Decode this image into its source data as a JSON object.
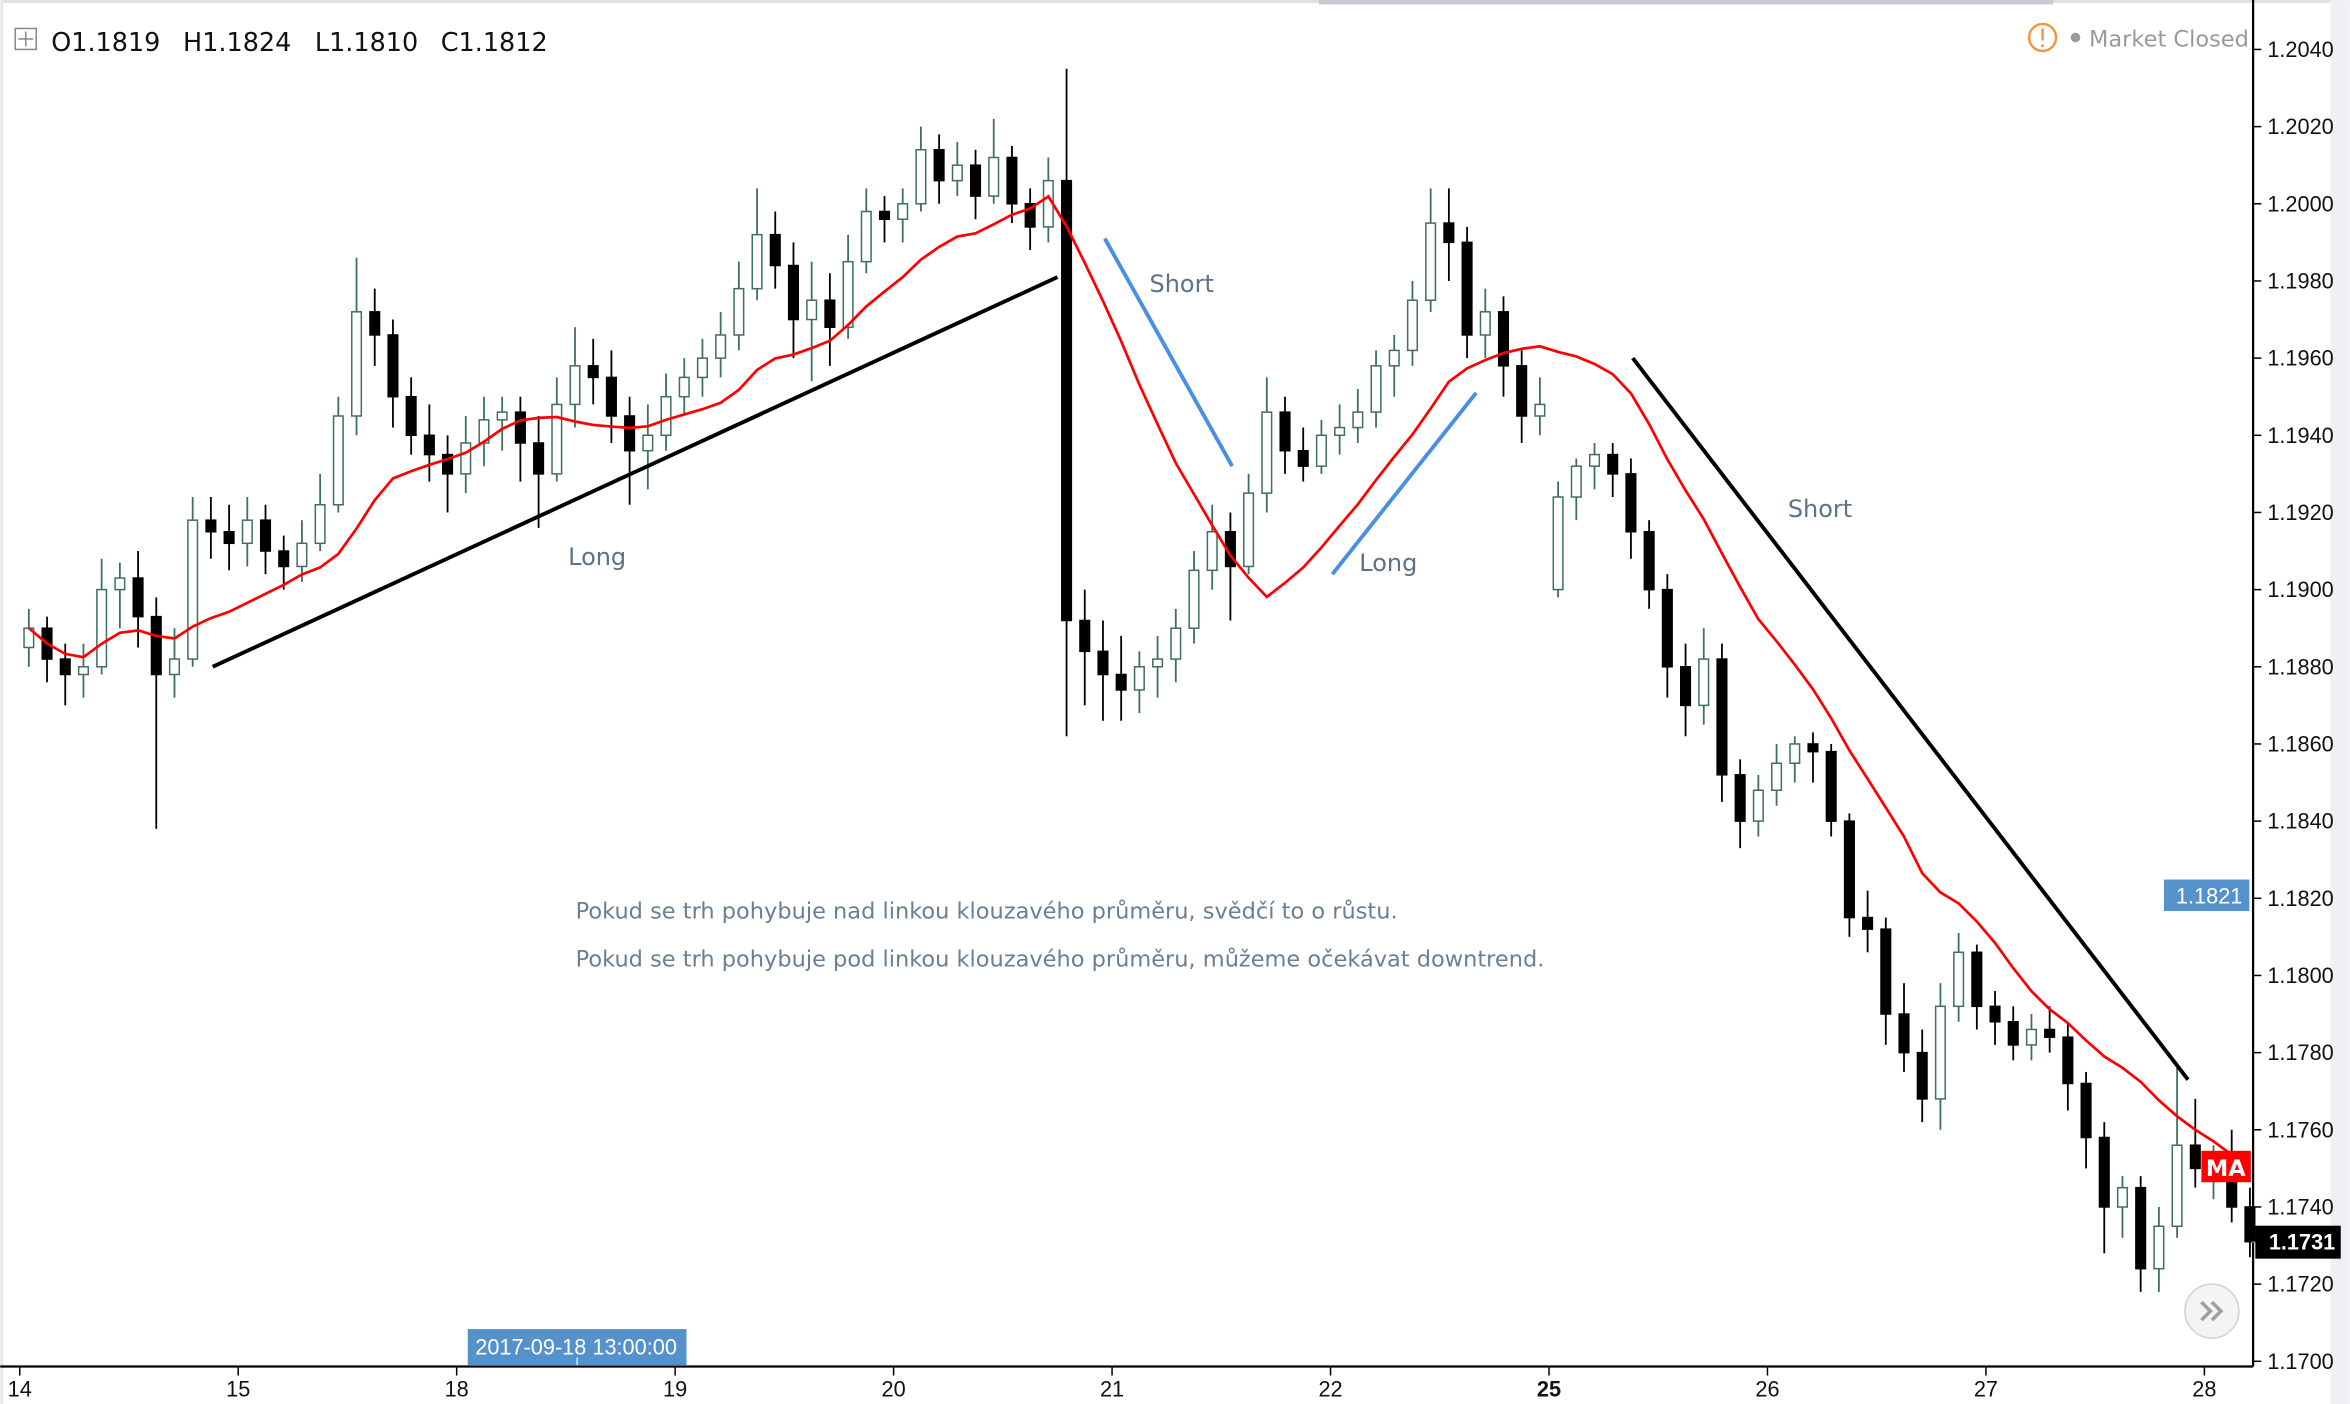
{
  "ohlc_header": {
    "open": "O1.1819",
    "high": "H1.1824",
    "low": "L1.1810",
    "close": "C1.1812"
  },
  "status": {
    "text": "Market Closed",
    "warning_color": "#f7923a"
  },
  "annotations": {
    "line1": "Pokud se trh pohybuje nad linkou klouzavého průměru, svědčí to o růstu.",
    "line2": "Pokud se trh pohybuje pod linkou klouzavého průměru, můžeme očekávat downtrend.",
    "labels": [
      "Long",
      "Short",
      "Long",
      "Short"
    ]
  },
  "chart_data": {
    "type": "candlestick",
    "title": "",
    "x_ticks": [
      "14",
      "15",
      "18",
      "19",
      "20",
      "21",
      "22",
      "25",
      "26",
      "27",
      "28"
    ],
    "y_ticks": [
      "1.2040",
      "1.2020",
      "1.2000",
      "1.1980",
      "1.1960",
      "1.1940",
      "1.1920",
      "1.1900",
      "1.1880",
      "1.1860",
      "1.1840",
      "1.1820",
      "1.1800",
      "1.1780",
      "1.1760",
      "1.1740",
      "1.1720",
      "1.1700"
    ],
    "ylim": [
      1.17,
      1.2048
    ],
    "grid": false,
    "colors": {
      "up": "#3f6f5f",
      "down": "#000000",
      "ma": "#ff0000",
      "trend_long": "#000000",
      "trend_blue": "#4a90e2"
    },
    "days": [
      {
        "day": "14",
        "candles": [
          [
            1.1885,
            1.1895,
            1.188,
            1.189
          ],
          [
            1.189,
            1.1893,
            1.1876,
            1.1882
          ],
          [
            1.1882,
            1.1886,
            1.187,
            1.1878
          ],
          [
            1.1878,
            1.1886,
            1.1872,
            1.188
          ],
          [
            1.188,
            1.1908,
            1.1878,
            1.19
          ],
          [
            1.19,
            1.1907,
            1.189,
            1.1903
          ],
          [
            1.1903,
            1.191,
            1.1885,
            1.1893
          ],
          [
            1.1893,
            1.1898,
            1.1838,
            1.1878
          ],
          [
            1.1878,
            1.189,
            1.1872,
            1.1882
          ],
          [
            1.1882,
            1.1924,
            1.188,
            1.1918
          ],
          [
            1.1918,
            1.1924,
            1.1908,
            1.1915
          ],
          [
            1.1915,
            1.1922,
            1.1905,
            1.1912
          ]
        ]
      },
      {
        "day": "15",
        "candles": [
          [
            1.1912,
            1.1924,
            1.1906,
            1.1918
          ],
          [
            1.1918,
            1.1922,
            1.1904,
            1.191
          ],
          [
            1.191,
            1.1914,
            1.19,
            1.1906
          ],
          [
            1.1906,
            1.1918,
            1.1902,
            1.1912
          ],
          [
            1.1912,
            1.193,
            1.191,
            1.1922
          ],
          [
            1.1922,
            1.195,
            1.192,
            1.1945
          ],
          [
            1.1945,
            1.1986,
            1.194,
            1.1972
          ],
          [
            1.1972,
            1.1978,
            1.1958,
            1.1966
          ],
          [
            1.1966,
            1.197,
            1.1942,
            1.195
          ],
          [
            1.195,
            1.1955,
            1.1935,
            1.194
          ],
          [
            1.194,
            1.1948,
            1.1928,
            1.1935
          ],
          [
            1.1935,
            1.194,
            1.192,
            1.193
          ]
        ]
      },
      {
        "day": "18",
        "candles": [
          [
            1.193,
            1.1945,
            1.1925,
            1.1938
          ],
          [
            1.1938,
            1.195,
            1.1932,
            1.1944
          ],
          [
            1.1944,
            1.195,
            1.1936,
            1.1946
          ],
          [
            1.1946,
            1.195,
            1.1928,
            1.1938
          ],
          [
            1.1938,
            1.1945,
            1.1916,
            1.193
          ],
          [
            1.193,
            1.1955,
            1.1928,
            1.1948
          ],
          [
            1.1948,
            1.1968,
            1.1942,
            1.1958
          ],
          [
            1.1958,
            1.1965,
            1.1948,
            1.1955
          ],
          [
            1.1955,
            1.1962,
            1.1938,
            1.1945
          ],
          [
            1.1945,
            1.195,
            1.1922,
            1.1936
          ],
          [
            1.1936,
            1.1948,
            1.1926,
            1.194
          ],
          [
            1.194,
            1.1956,
            1.1936,
            1.195
          ]
        ]
      },
      {
        "day": "19",
        "candles": [
          [
            1.195,
            1.196,
            1.1945,
            1.1955
          ],
          [
            1.1955,
            1.1965,
            1.195,
            1.196
          ],
          [
            1.196,
            1.1972,
            1.1955,
            1.1966
          ],
          [
            1.1966,
            1.1985,
            1.1962,
            1.1978
          ],
          [
            1.1978,
            1.2004,
            1.1975,
            1.1992
          ],
          [
            1.1992,
            1.1998,
            1.1978,
            1.1984
          ],
          [
            1.1984,
            1.199,
            1.196,
            1.197
          ],
          [
            1.197,
            1.1985,
            1.1954,
            1.1975
          ],
          [
            1.1975,
            1.1982,
            1.1958,
            1.1968
          ],
          [
            1.1968,
            1.1992,
            1.1965,
            1.1985
          ],
          [
            1.1985,
            1.2004,
            1.1982,
            1.1998
          ],
          [
            1.1998,
            1.2002,
            1.199,
            1.1996
          ]
        ]
      },
      {
        "day": "20",
        "candles": [
          [
            1.1996,
            1.2004,
            1.199,
            1.2
          ],
          [
            1.2,
            1.202,
            1.1998,
            1.2014
          ],
          [
            1.2014,
            1.2018,
            1.2,
            1.2006
          ],
          [
            1.2006,
            1.2016,
            1.2002,
            1.201
          ],
          [
            1.201,
            1.2014,
            1.1996,
            1.2002
          ],
          [
            1.2002,
            1.2022,
            1.2,
            1.2012
          ],
          [
            1.2012,
            1.2015,
            1.1995,
            1.2
          ],
          [
            1.2,
            1.2004,
            1.1988,
            1.1994
          ],
          [
            1.1994,
            1.2012,
            1.199,
            1.2006
          ],
          [
            1.2006,
            1.2035,
            1.1862,
            1.1892
          ],
          [
            1.1892,
            1.19,
            1.187,
            1.1884
          ],
          [
            1.1884,
            1.1892,
            1.1866,
            1.1878
          ]
        ]
      },
      {
        "day": "21",
        "candles": [
          [
            1.1878,
            1.1888,
            1.1866,
            1.1874
          ],
          [
            1.1874,
            1.1884,
            1.1868,
            1.188
          ],
          [
            1.188,
            1.1888,
            1.1872,
            1.1882
          ],
          [
            1.1882,
            1.1895,
            1.1876,
            1.189
          ],
          [
            1.189,
            1.191,
            1.1886,
            1.1905
          ],
          [
            1.1905,
            1.1922,
            1.19,
            1.1915
          ],
          [
            1.1915,
            1.192,
            1.1892,
            1.1906
          ],
          [
            1.1906,
            1.193,
            1.1904,
            1.1925
          ],
          [
            1.1925,
            1.1955,
            1.192,
            1.1946
          ],
          [
            1.1946,
            1.195,
            1.193,
            1.1936
          ],
          [
            1.1936,
            1.1942,
            1.1928,
            1.1932
          ],
          [
            1.1932,
            1.1944,
            1.193,
            1.194
          ]
        ]
      },
      {
        "day": "22",
        "candles": [
          [
            1.194,
            1.1948,
            1.1935,
            1.1942
          ],
          [
            1.1942,
            1.1952,
            1.1938,
            1.1946
          ],
          [
            1.1946,
            1.1962,
            1.1942,
            1.1958
          ],
          [
            1.1958,
            1.1966,
            1.195,
            1.1962
          ],
          [
            1.1962,
            1.198,
            1.1958,
            1.1975
          ],
          [
            1.1975,
            1.2004,
            1.1972,
            1.1995
          ],
          [
            1.1995,
            1.2004,
            1.198,
            1.199
          ],
          [
            1.199,
            1.1994,
            1.196,
            1.1966
          ],
          [
            1.1966,
            1.1978,
            1.196,
            1.1972
          ],
          [
            1.1972,
            1.1976,
            1.195,
            1.1958
          ],
          [
            1.1958,
            1.1962,
            1.1938,
            1.1945
          ],
          [
            1.1945,
            1.1955,
            1.194,
            1.1948
          ]
        ]
      },
      {
        "day": "25",
        "candles": [
          [
            1.19,
            1.1928,
            1.1898,
            1.1924
          ],
          [
            1.1924,
            1.1934,
            1.1918,
            1.1932
          ],
          [
            1.1932,
            1.1938,
            1.1926,
            1.1935
          ],
          [
            1.1935,
            1.1938,
            1.1924,
            1.193
          ],
          [
            1.193,
            1.1934,
            1.1908,
            1.1915
          ],
          [
            1.1915,
            1.1918,
            1.1895,
            1.19
          ],
          [
            1.19,
            1.1904,
            1.1872,
            1.188
          ],
          [
            1.188,
            1.1886,
            1.1862,
            1.187
          ],
          [
            1.187,
            1.189,
            1.1865,
            1.1882
          ],
          [
            1.1882,
            1.1886,
            1.1845,
            1.1852
          ],
          [
            1.1852,
            1.1856,
            1.1833,
            1.184
          ],
          [
            1.184,
            1.1852,
            1.1836,
            1.1848
          ]
        ]
      },
      {
        "day": "26",
        "candles": [
          [
            1.1848,
            1.186,
            1.1844,
            1.1855
          ],
          [
            1.1855,
            1.1862,
            1.185,
            1.186
          ],
          [
            1.186,
            1.1863,
            1.185,
            1.1858
          ],
          [
            1.1858,
            1.186,
            1.1836,
            1.184
          ],
          [
            1.184,
            1.1842,
            1.181,
            1.1815
          ],
          [
            1.1815,
            1.1822,
            1.1806,
            1.1812
          ],
          [
            1.1812,
            1.1815,
            1.1782,
            1.179
          ],
          [
            1.179,
            1.1798,
            1.1775,
            1.178
          ],
          [
            1.178,
            1.1786,
            1.1762,
            1.1768
          ],
          [
            1.1768,
            1.1798,
            1.176,
            1.1792
          ],
          [
            1.1792,
            1.1811,
            1.1788,
            1.1806
          ],
          [
            1.1806,
            1.1808,
            1.1786,
            1.1792
          ]
        ]
      },
      {
        "day": "27",
        "candles": [
          [
            1.1792,
            1.1796,
            1.1782,
            1.1788
          ],
          [
            1.1788,
            1.1792,
            1.1778,
            1.1782
          ],
          [
            1.1782,
            1.179,
            1.1778,
            1.1786
          ],
          [
            1.1786,
            1.1792,
            1.178,
            1.1784
          ],
          [
            1.1784,
            1.1788,
            1.1765,
            1.1772
          ],
          [
            1.1772,
            1.1775,
            1.175,
            1.1758
          ],
          [
            1.1758,
            1.1762,
            1.1728,
            1.174
          ],
          [
            1.174,
            1.1748,
            1.1732,
            1.1745
          ],
          [
            1.1745,
            1.1748,
            1.1718,
            1.1724
          ],
          [
            1.1724,
            1.174,
            1.1718,
            1.1735
          ],
          [
            1.1735,
            1.1776,
            1.1732,
            1.1756
          ],
          [
            1.1756,
            1.1768,
            1.1745,
            1.175
          ]
        ]
      },
      {
        "day": "28",
        "candles": [
          [
            1.175,
            1.1756,
            1.1742,
            1.1752
          ],
          [
            1.1752,
            1.176,
            1.1736,
            1.174
          ],
          [
            1.174,
            1.1745,
            1.1727,
            1.1731
          ]
        ]
      }
    ],
    "ma": {
      "label": "MA",
      "value": 1.1752
    },
    "trendlines": [
      {
        "name": "long-1",
        "color": "#000000",
        "from": {
          "candle": 10.1,
          "price": 1.188
        },
        "to": {
          "candle": 56.5,
          "price": 1.1981
        }
      },
      {
        "name": "short-1",
        "color": "#4a90e2",
        "from": {
          "candle": 59.1,
          "price": 1.1991
        },
        "to": {
          "candle": 66.1,
          "price": 1.1932
        }
      },
      {
        "name": "long-2",
        "color": "#4a90e2",
        "from": {
          "candle": 71.6,
          "price": 1.1904
        },
        "to": {
          "candle": 79.5,
          "price": 1.1951
        }
      },
      {
        "name": "short-2",
        "color": "#000000",
        "from": {
          "candle": 88.1,
          "price": 1.196
        },
        "to": {
          "candle": 118.6,
          "price": 1.1773
        }
      }
    ],
    "last_price": "1.1731",
    "crosshair_price": "1.1821",
    "crosshair_time": "2017-09-18 13:00:00"
  }
}
